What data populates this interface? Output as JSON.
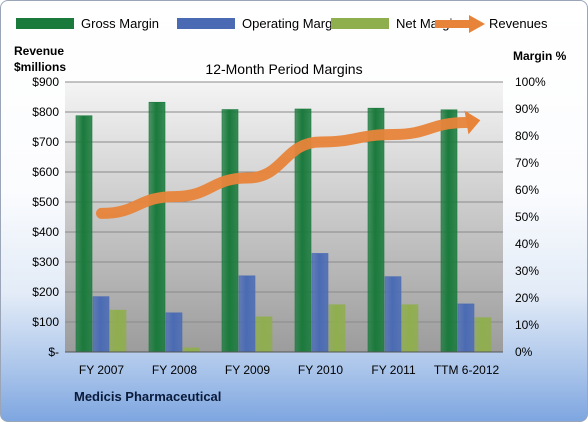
{
  "company": "Medicis Pharmaceutical",
  "chart_data": {
    "type": "bar",
    "title": "12-Month Period Margins",
    "categories": [
      "FY 2007",
      "FY 2008",
      "FY 2009",
      "FY 2010",
      "FY 2011",
      "TTM 6-2012"
    ],
    "y_left": {
      "label_line1": "Revenue",
      "label_line2": "$millions",
      "range": [
        0,
        900
      ],
      "ticks": [
        "$-",
        "$100",
        "$200",
        "$300",
        "$400",
        "$500",
        "$600",
        "$700",
        "$800",
        "$900"
      ]
    },
    "y_right": {
      "label": "Margin %",
      "range": [
        0,
        100
      ],
      "ticks": [
        "0%",
        "10%",
        "20%",
        "30%",
        "40%",
        "50%",
        "60%",
        "70%",
        "80%",
        "90%",
        "100%"
      ]
    },
    "grid": true,
    "legend_position": "top",
    "series": [
      {
        "name": "Gross Margin",
        "kind": "bar",
        "axis": "right",
        "color": "#1a7a3c",
        "values": [
          87.5,
          92.5,
          89.8,
          90.0,
          90.3,
          89.7
        ]
      },
      {
        "name": "Operating Margin",
        "kind": "bar",
        "axis": "right",
        "color": "#4a6bb4",
        "values": [
          20.5,
          14.5,
          28.2,
          36.5,
          27.9,
          17.8
        ]
      },
      {
        "name": "Net Margin",
        "kind": "bar",
        "axis": "right",
        "color": "#8fae4e",
        "values": [
          15.5,
          1.5,
          13.0,
          17.5,
          17.5,
          12.7
        ]
      },
      {
        "name": "Revenues",
        "kind": "line",
        "axis": "left",
        "color": "#e8843a",
        "values": [
          462,
          518,
          580,
          700,
          725,
          765
        ]
      }
    ]
  }
}
